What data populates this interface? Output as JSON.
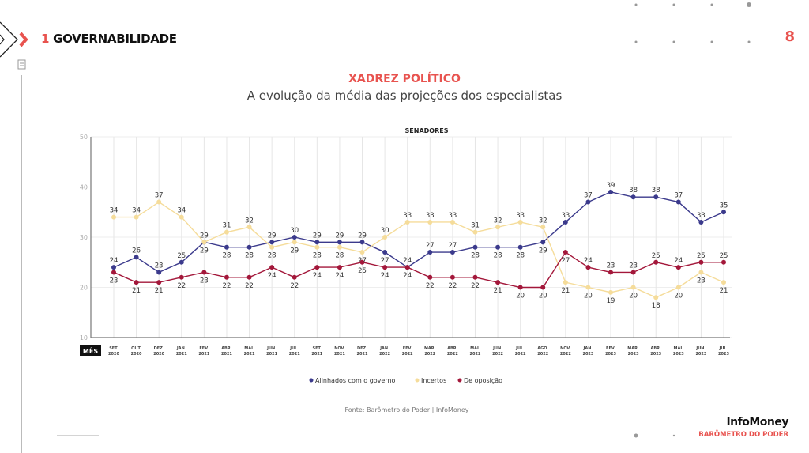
{
  "header": {
    "section_number": "1",
    "section_title": "GOVERNABILIDADE",
    "page_number": "8"
  },
  "title": "XADREZ POLÍTICO",
  "subtitle": "A evolução da média das projeções dos especialistas",
  "source": "Fonte: Barômetro do Poder | InfoMoney",
  "brand": {
    "name": "InfoMoney",
    "product": "BARÔMETRO DO PODER"
  },
  "chart_data": {
    "type": "line",
    "title": "SENADORES",
    "xlabel": "MÊS",
    "ylim": [
      10,
      50
    ],
    "yticks": [
      10,
      20,
      30,
      40,
      50
    ],
    "grid": true,
    "legend_position": "bottom",
    "categories": [
      [
        "SET.",
        "2020"
      ],
      [
        "OUT.",
        "2020"
      ],
      [
        "DEZ.",
        "2020"
      ],
      [
        "JAN.",
        "2021"
      ],
      [
        "FEV.",
        "2021"
      ],
      [
        "ABR.",
        "2021"
      ],
      [
        "MAI.",
        "2021"
      ],
      [
        "JUN.",
        "2021"
      ],
      [
        "JUL.",
        "2021"
      ],
      [
        "SET.",
        "2021"
      ],
      [
        "NOV.",
        "2021"
      ],
      [
        "DEZ.",
        "2021"
      ],
      [
        "JAN.",
        "2022"
      ],
      [
        "FEV.",
        "2022"
      ],
      [
        "MAR.",
        "2022"
      ],
      [
        "ABR.",
        "2022"
      ],
      [
        "MAI.",
        "2022"
      ],
      [
        "JUN.",
        "2022"
      ],
      [
        "JUL.",
        "2022"
      ],
      [
        "AGO.",
        "2022"
      ],
      [
        "NOV.",
        "2022"
      ],
      [
        "JAN.",
        "2023"
      ],
      [
        "FEV.",
        "2023"
      ],
      [
        "MAR.",
        "2023"
      ],
      [
        "ABR.",
        "2023"
      ],
      [
        "MAI.",
        "2023"
      ],
      [
        "JUN.",
        "2023"
      ],
      [
        "JUL.",
        "2023"
      ]
    ],
    "series": [
      {
        "name": "Alinhados com o governo",
        "color": "#3b3a8c",
        "values": [
          24,
          26,
          23,
          25,
          29,
          28,
          28,
          29,
          30,
          29,
          29,
          29,
          27,
          24,
          27,
          27,
          28,
          28,
          28,
          29,
          33,
          37,
          39,
          38,
          38,
          37,
          33,
          35
        ]
      },
      {
        "name": "Incertos",
        "color": "#f5dc9a",
        "values": [
          34,
          34,
          37,
          34,
          29,
          31,
          32,
          28,
          29,
          28,
          28,
          27,
          30,
          33,
          33,
          33,
          31,
          32,
          33,
          32,
          21,
          20,
          19,
          20,
          18,
          20,
          23,
          21
        ]
      },
      {
        "name": "De oposição",
        "color": "#a3173a",
        "values": [
          23,
          21,
          21,
          22,
          23,
          22,
          22,
          24,
          22,
          24,
          24,
          25,
          24,
          24,
          22,
          22,
          22,
          21,
          20,
          20,
          27,
          24,
          23,
          23,
          25,
          24,
          25,
          25
        ]
      }
    ]
  }
}
